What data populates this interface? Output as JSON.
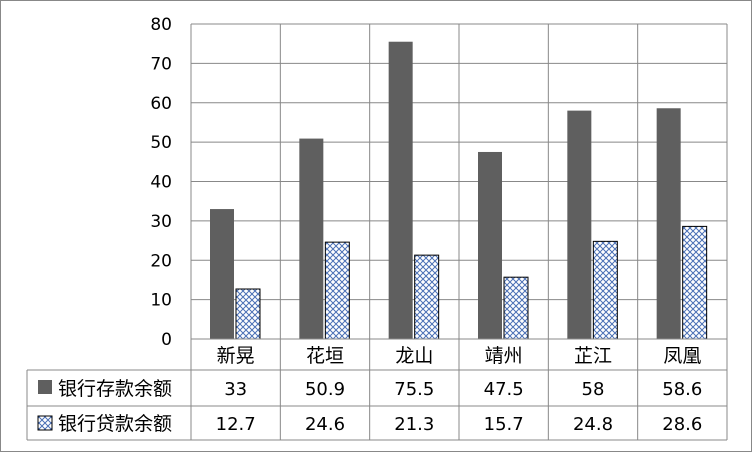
{
  "chart_data": {
    "type": "bar",
    "categories": [
      "新晃",
      "花垣",
      "龙山",
      "靖州",
      "芷江",
      "凤凰"
    ],
    "series": [
      {
        "name": "银行存款余额",
        "values": [
          33,
          50.9,
          75.5,
          47.5,
          58,
          58.6
        ],
        "color": "#5f5f5f",
        "pattern": "solid"
      },
      {
        "name": "银行贷款余额",
        "values": [
          12.7,
          24.6,
          21.3,
          15.7,
          24.8,
          28.6
        ],
        "color": "#4a6fb5",
        "pattern": "crosshatch"
      }
    ],
    "y_ticks": [
      "0",
      "10",
      "20",
      "30",
      "40",
      "50",
      "60",
      "70",
      "80"
    ],
    "ylim": [
      0,
      80
    ],
    "grid": true,
    "legend": "data-table-left",
    "data_table": {
      "rows": [
        {
          "label": "银行存款余额",
          "cells": [
            "33",
            "50.9",
            "75.5",
            "47.5",
            "58",
            "58.6"
          ]
        },
        {
          "label": "银行贷款余额",
          "cells": [
            "12.7",
            "24.6",
            "21.3",
            "15.7",
            "24.8",
            "28.6"
          ]
        }
      ]
    }
  }
}
